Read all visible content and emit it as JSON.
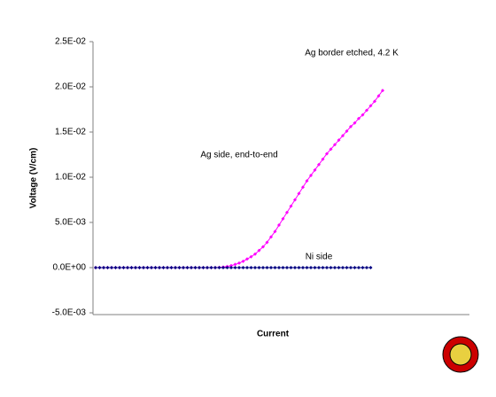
{
  "chart_data": {
    "type": "line",
    "title": "Ag border etched, 4.2 K",
    "xlabel": "Current",
    "ylabel": "Voltage (V/cm)",
    "categories": [
      null,
      null,
      null,
      null,
      null,
      null,
      null,
      null,
      null,
      null,
      null,
      null,
      null,
      null,
      null,
      null,
      null,
      null,
      null,
      null,
      null,
      null,
      null,
      null,
      null,
      null,
      null,
      null,
      null,
      null,
      null,
      null,
      null,
      null,
      null,
      null,
      null,
      null,
      null,
      null,
      null,
      null,
      null,
      null,
      null,
      null,
      null,
      null,
      null,
      null,
      null,
      null,
      null,
      null,
      null,
      null,
      null,
      null,
      null,
      null,
      null,
      null,
      null,
      null,
      null,
      null,
      null,
      null,
      null,
      null,
      null,
      null,
      null
    ],
    "series": [
      {
        "name": "Ag side, end-to-end",
        "color": "#ff00ff",
        "values": [
          0,
          0,
          0,
          0,
          0,
          0,
          0,
          0,
          0,
          0,
          0,
          0,
          0,
          0,
          0,
          0,
          0,
          0,
          0,
          0,
          0,
          0,
          0,
          0,
          0,
          0,
          0,
          0,
          0,
          0,
          0,
          2e-05,
          6e-05,
          0.00012,
          0.00022,
          0.00035,
          0.0005,
          0.0007,
          0.00095,
          0.0012,
          0.0015,
          0.0019,
          0.0023,
          0.0028,
          0.0034,
          0.004,
          0.0047,
          0.0054,
          0.0061,
          0.0068,
          0.0075,
          0.0082,
          0.0089,
          0.0096,
          0.0102,
          0.0108,
          0.0114,
          0.012,
          0.0126,
          0.0131,
          0.0136,
          0.0141,
          0.0146,
          0.0151,
          0.0156,
          0.016,
          0.0165,
          0.0169,
          0.0174,
          0.0179,
          0.0184,
          0.019,
          0.0196
        ]
      },
      {
        "name": "Ni side",
        "color": "#000080",
        "values": [
          0,
          0,
          0,
          0,
          0,
          0,
          0,
          0,
          0,
          0,
          0,
          0,
          0,
          0,
          0,
          0,
          0,
          0,
          0,
          0,
          0,
          0,
          0,
          0,
          0,
          0,
          0,
          0,
          0,
          0,
          0,
          0,
          0,
          0,
          0,
          0,
          0,
          0,
          0,
          0,
          0,
          0,
          0,
          0,
          0,
          0,
          0,
          0,
          0,
          0,
          0,
          0,
          0,
          0,
          0,
          0,
          0,
          0,
          0,
          0,
          0,
          0,
          0,
          0,
          0,
          0,
          0,
          0,
          0,
          0,
          null,
          null,
          null
        ]
      }
    ],
    "ylim": [
      -0.005,
      0.025
    ],
    "yticks": [
      {
        "value": -0.005,
        "label": "-5.0E-03"
      },
      {
        "value": 0,
        "label": "0.0E+00"
      },
      {
        "value": 0.005,
        "label": "5.0E-03"
      },
      {
        "value": 0.01,
        "label": "1.0E-02"
      },
      {
        "value": 0.015,
        "label": "1.5E-02"
      },
      {
        "value": 0.02,
        "label": "2.0E-02"
      },
      {
        "value": 0.025,
        "label": "2.5E-02"
      }
    ],
    "grid": false
  }
}
